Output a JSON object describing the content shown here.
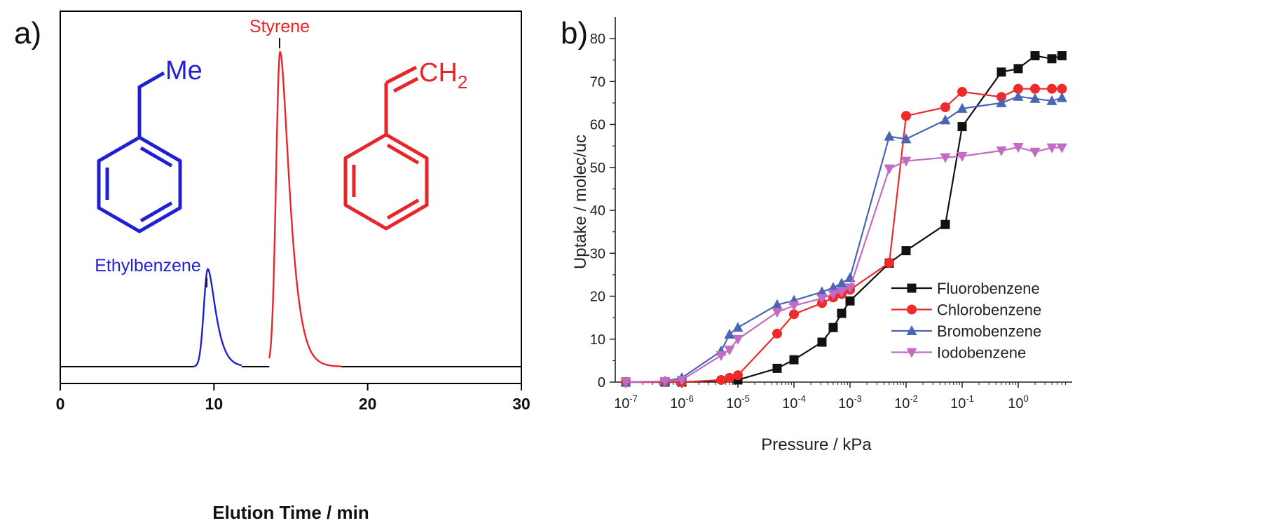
{
  "panels": {
    "a_label": "a)",
    "b_label": "b)"
  },
  "colors": {
    "blue": "#1f1fd6",
    "red": "#e8262a",
    "black": "#000000",
    "series_black": "#111111",
    "series_red": "#ee2a2a",
    "series_blue": "#4a65b4",
    "series_purple": "#c46ac4"
  },
  "chart_data": [
    {
      "type": "line",
      "xlabel": "Elution Time / min",
      "ylabel": "",
      "xlim": [
        0,
        30
      ],
      "xticks": [
        0,
        10,
        20,
        30
      ],
      "yaxis_ticks": "none",
      "grid": false,
      "peaks": [
        {
          "name": "Ethylbenzene",
          "center": 9.6,
          "relative_height": 0.31,
          "color": "#1f1fd6"
        },
        {
          "name": "Styrene",
          "center": 14.3,
          "relative_height": 1.0,
          "color": "#e8262a"
        }
      ],
      "annotations": {
        "ethylbenzene_substituent": "Me",
        "styrene_substituent": "CH",
        "styrene_subscript": "2"
      }
    },
    {
      "type": "line",
      "xlabel": "Pressure / kPa",
      "ylabel": "Uptake / molec/uc",
      "xscale": "log",
      "xlim_log10": [
        -7,
        0.85
      ],
      "xticks_log10": [
        -7,
        -6,
        -5,
        -4,
        -3,
        -2,
        -1,
        0
      ],
      "xtick_base": "10",
      "ylim": [
        0,
        85
      ],
      "yticks": [
        0,
        10,
        20,
        30,
        40,
        50,
        60,
        70,
        80
      ],
      "grid": false,
      "legend_position": "lower-right",
      "series": [
        {
          "name": "Fluorobenzene",
          "marker": "square",
          "color": "#111111",
          "points": [
            [
              -7,
              0
            ],
            [
              -6.3,
              0
            ],
            [
              -6,
              0
            ],
            [
              -5,
              0.5
            ],
            [
              -4.3,
              3.2
            ],
            [
              -4,
              5.2
            ],
            [
              -3.5,
              9.3
            ],
            [
              -3.3,
              12.7
            ],
            [
              -3.15,
              16
            ],
            [
              -3,
              18.9
            ],
            [
              -2.3,
              27.7
            ],
            [
              -2,
              30.6
            ],
            [
              -1.3,
              36.7
            ],
            [
              -1,
              59.5
            ],
            [
              -0.3,
              72.2
            ],
            [
              0,
              73
            ],
            [
              0.3,
              76
            ],
            [
              0.6,
              75.3
            ],
            [
              0.78,
              76
            ]
          ]
        },
        {
          "name": "Chlorobenzene",
          "marker": "circle",
          "color": "#ee2a2a",
          "points": [
            [
              -7,
              0
            ],
            [
              -6.3,
              0
            ],
            [
              -6,
              0
            ],
            [
              -5.3,
              0.5
            ],
            [
              -5.15,
              1
            ],
            [
              -5,
              1.6
            ],
            [
              -4.3,
              11.3
            ],
            [
              -4,
              15.8
            ],
            [
              -3.5,
              18.4
            ],
            [
              -3.3,
              19.7
            ],
            [
              -3.15,
              20.5
            ],
            [
              -3,
              21.5
            ],
            [
              -2.3,
              27.8
            ],
            [
              -2,
              62
            ],
            [
              -1.3,
              64
            ],
            [
              -1,
              67.6
            ],
            [
              -0.3,
              66.4
            ],
            [
              0,
              68.3
            ],
            [
              0.3,
              68.3
            ],
            [
              0.6,
              68.3
            ],
            [
              0.78,
              68.3
            ]
          ]
        },
        {
          "name": "Bromobenzene",
          "marker": "triangle-up",
          "color": "#4a65b4",
          "points": [
            [
              -7,
              0
            ],
            [
              -6.3,
              0.2
            ],
            [
              -6,
              1
            ],
            [
              -5.3,
              7.2
            ],
            [
              -5.15,
              11.1
            ],
            [
              -5,
              12.7
            ],
            [
              -4.3,
              18
            ],
            [
              -4,
              19
            ],
            [
              -3.5,
              21
            ],
            [
              -3.3,
              22
            ],
            [
              -3.15,
              23
            ],
            [
              -3,
              24.3
            ],
            [
              -2.3,
              57.2
            ],
            [
              -2,
              56.6
            ],
            [
              -1.3,
              61
            ],
            [
              -1,
              63.7
            ],
            [
              -0.3,
              65
            ],
            [
              0,
              66.5
            ],
            [
              0.3,
              66
            ],
            [
              0.6,
              65.5
            ],
            [
              0.78,
              66.2
            ]
          ]
        },
        {
          "name": "Iodobenzene",
          "marker": "triangle-down",
          "color": "#c46ac4",
          "points": [
            [
              -7,
              0
            ],
            [
              -6.3,
              0.2
            ],
            [
              -6,
              0.5
            ],
            [
              -5.3,
              6.2
            ],
            [
              -5.15,
              7.5
            ],
            [
              -5,
              10
            ],
            [
              -4.3,
              16.3
            ],
            [
              -4,
              17.8
            ],
            [
              -3.5,
              19.5
            ],
            [
              -3.3,
              20.5
            ],
            [
              -3.15,
              21
            ],
            [
              -3,
              22
            ],
            [
              -2.3,
              49.7
            ],
            [
              -2,
              51.5
            ],
            [
              -1.3,
              52.3
            ],
            [
              -1,
              52.6
            ],
            [
              -0.3,
              53.9
            ],
            [
              0,
              54.7
            ],
            [
              0.3,
              53.6
            ],
            [
              0.6,
              54.6
            ],
            [
              0.78,
              54.6
            ]
          ]
        }
      ]
    }
  ]
}
